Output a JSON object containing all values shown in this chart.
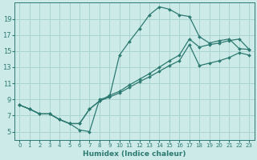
{
  "xlabel": "Humidex (Indice chaleur)",
  "bg_color": "#cceae7",
  "grid_color": "#aad4d0",
  "line_color": "#2d7a72",
  "xlim": [
    -0.5,
    23.5
  ],
  "ylim": [
    4.0,
    21.0
  ],
  "xticks": [
    0,
    1,
    2,
    3,
    4,
    5,
    6,
    7,
    8,
    9,
    10,
    11,
    12,
    13,
    14,
    15,
    16,
    17,
    18,
    19,
    20,
    21,
    22,
    23
  ],
  "yticks": [
    5,
    7,
    9,
    11,
    13,
    15,
    17,
    19
  ],
  "curve1_x": [
    0,
    1,
    2,
    3,
    4,
    5,
    6,
    7,
    8,
    9,
    10,
    11,
    12,
    13,
    14,
    15,
    16,
    17,
    18,
    19,
    20,
    21,
    22,
    23
  ],
  "curve1_y": [
    8.3,
    7.8,
    7.2,
    7.2,
    6.5,
    6.0,
    5.2,
    5.0,
    9.0,
    9.3,
    14.5,
    16.2,
    17.8,
    19.5,
    20.5,
    20.2,
    19.5,
    19.3,
    16.8,
    16.0,
    16.3,
    16.5,
    15.3,
    15.2
  ],
  "curve2_x": [
    0,
    1,
    2,
    3,
    4,
    5,
    6,
    7,
    8,
    9,
    10,
    11,
    12,
    13,
    14,
    15,
    16,
    17,
    18,
    19,
    20,
    21,
    22,
    23
  ],
  "curve2_y": [
    8.3,
    7.8,
    7.2,
    7.2,
    6.5,
    6.0,
    6.0,
    7.8,
    8.8,
    9.5,
    10.0,
    10.8,
    11.5,
    12.2,
    13.0,
    13.8,
    14.5,
    16.5,
    15.5,
    15.8,
    16.0,
    16.3,
    16.5,
    15.2
  ],
  "curve3_x": [
    0,
    1,
    2,
    3,
    4,
    5,
    6,
    7,
    8,
    9,
    10,
    11,
    12,
    13,
    14,
    15,
    16,
    17,
    18,
    19,
    20,
    21,
    22,
    23
  ],
  "curve3_y": [
    8.3,
    7.8,
    7.2,
    7.2,
    6.5,
    6.0,
    6.0,
    7.8,
    8.8,
    9.3,
    9.8,
    10.5,
    11.2,
    11.8,
    12.5,
    13.2,
    13.8,
    15.8,
    13.2,
    13.5,
    13.8,
    14.2,
    14.8,
    14.5
  ],
  "marker": "D",
  "markersize": 2.0,
  "linewidth": 0.9,
  "xlabel_fontsize": 6.5,
  "tick_fontsize_x": 5.0,
  "tick_fontsize_y": 6.0
}
